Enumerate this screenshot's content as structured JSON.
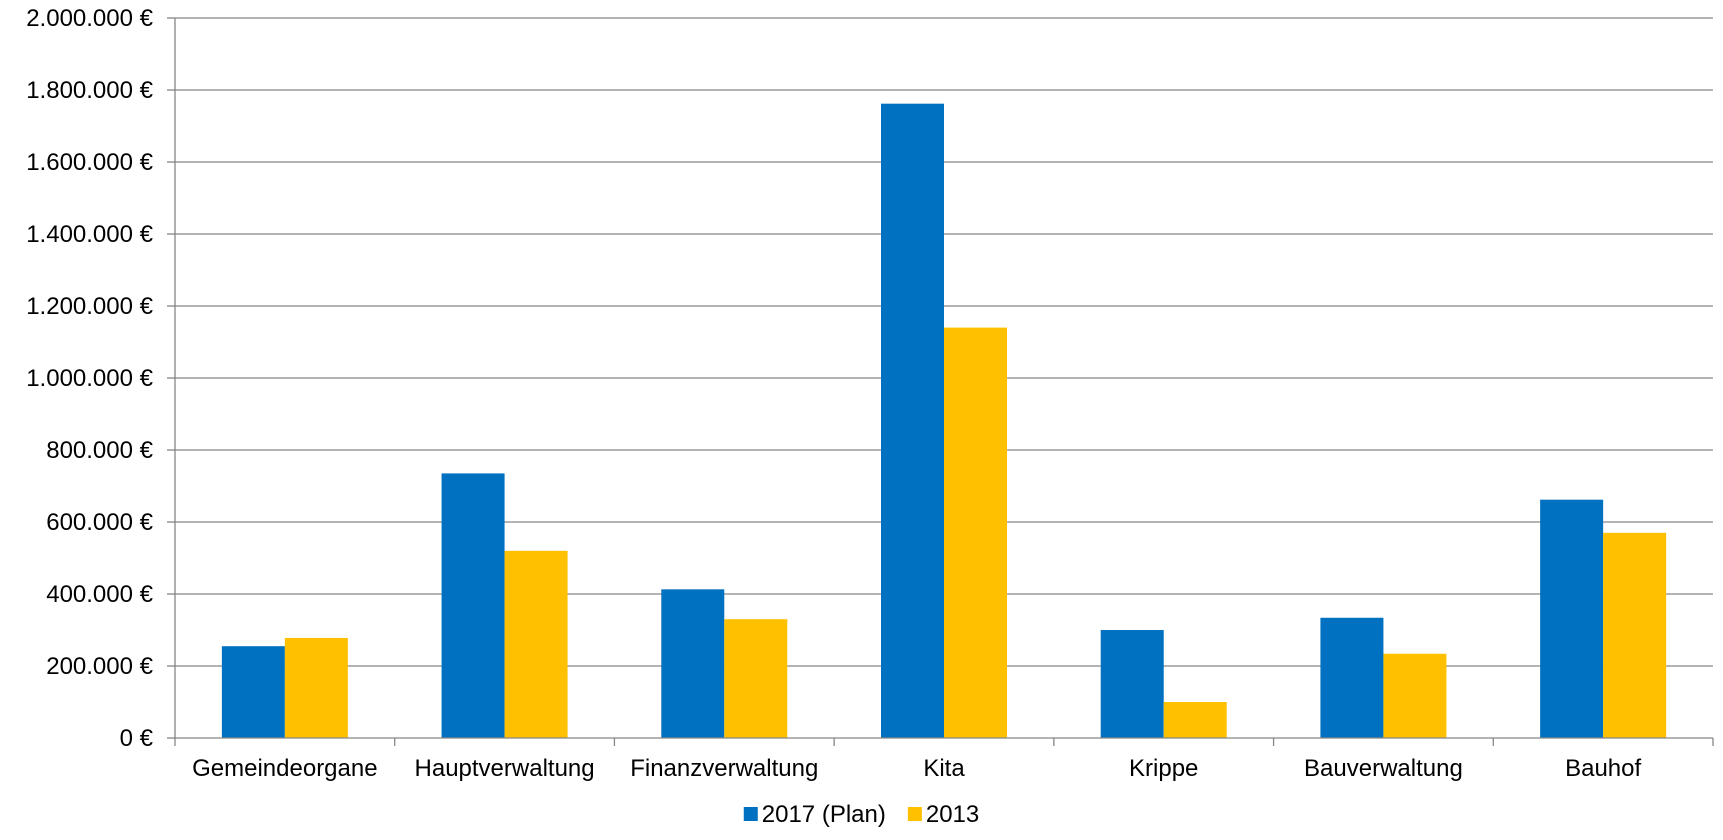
{
  "chart_data": {
    "type": "bar",
    "title": "",
    "xlabel": "",
    "ylabel": "",
    "categories": [
      "Gemeindeorgane",
      "Hauptverwaltung",
      "Finanzverwaltung",
      "Kita",
      "Krippe",
      "Bauverwaltung",
      "Bauhof"
    ],
    "series": [
      {
        "name": "2017 (Plan)",
        "color": "#0070C0",
        "values": [
          255000,
          735000,
          413000,
          1762000,
          300000,
          334000,
          662000
        ]
      },
      {
        "name": "2013",
        "color": "#FFC000",
        "values": [
          278000,
          520000,
          330000,
          1140000,
          100000,
          234000,
          570000
        ]
      }
    ],
    "ylim": [
      0,
      2000000
    ],
    "y_ticks": [
      0,
      200000,
      400000,
      600000,
      800000,
      1000000,
      1200000,
      1400000,
      1600000,
      1800000,
      2000000
    ],
    "y_tick_labels": [
      "0 €",
      "200.000 €",
      "400.000 €",
      "600.000 €",
      "800.000 €",
      "1.000.000 €",
      "1.200.000 €",
      "1.400.000 €",
      "1.600.000 €",
      "1.800.000 €",
      "2.000.000 €"
    ],
    "grid": true,
    "legend_position": "bottom-center"
  }
}
